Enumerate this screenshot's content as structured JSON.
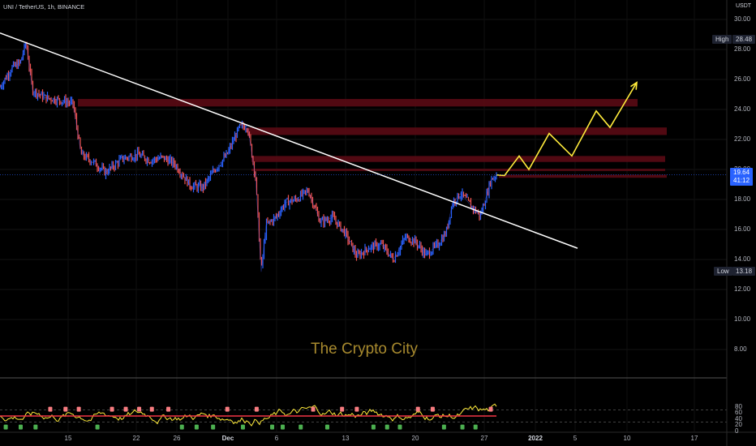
{
  "header": {
    "ticker": "UNI / TetherUS, 1h, BINANCE",
    "currency": "USDT"
  },
  "watermark": "The Crypto City",
  "badges": {
    "high_label": "High",
    "high_value": "28.48",
    "low_label": "Low",
    "low_value": "13.18",
    "price": "19.64",
    "countdown": "41:12"
  },
  "colors": {
    "background": "#000000",
    "up": "#2962ff",
    "down": "#ef5350",
    "trendline": "#ffffff",
    "projection": "#ffeb3b",
    "zone": "#5a0a14",
    "price_badge": "#2962ff",
    "osc_line": "#ffeb3b",
    "osc_signal": "#f23645"
  },
  "chart_data": {
    "type": "line",
    "title": "UNI / TetherUS, 1h, BINANCE",
    "ylabel": "USDT",
    "ylim": [
      7,
      31
    ],
    "y_ticks": [
      "30.00",
      "28.00",
      "26.00",
      "24.00",
      "22.00",
      "20.00",
      "18.00",
      "16.00",
      "14.00",
      "12.00",
      "10.00",
      "8.00"
    ],
    "x_ticks": [
      "15",
      "22",
      "26",
      "Dec",
      "6",
      "13",
      "20",
      "27",
      "2022",
      "5",
      "10",
      "17"
    ],
    "price_path": [
      [
        0,
        25.5
      ],
      [
        15,
        26.8
      ],
      [
        25,
        27.1
      ],
      [
        32,
        28.48
      ],
      [
        40,
        25.3
      ],
      [
        55,
        24.8
      ],
      [
        75,
        24.6
      ],
      [
        90,
        24.4
      ],
      [
        100,
        21.0
      ],
      [
        115,
        20.5
      ],
      [
        130,
        19.8
      ],
      [
        150,
        20.7
      ],
      [
        170,
        21.0
      ],
      [
        185,
        20.6
      ],
      [
        200,
        20.8
      ],
      [
        215,
        20.4
      ],
      [
        235,
        18.9
      ],
      [
        250,
        18.8
      ],
      [
        265,
        20.0
      ],
      [
        280,
        21.0
      ],
      [
        295,
        22.8
      ],
      [
        305,
        22.9
      ],
      [
        315,
        19.5
      ],
      [
        322,
        13.18
      ],
      [
        328,
        16.3
      ],
      [
        340,
        16.8
      ],
      [
        352,
        17.8
      ],
      [
        365,
        18.0
      ],
      [
        380,
        18.6
      ],
      [
        395,
        16.5
      ],
      [
        410,
        16.8
      ],
      [
        425,
        15.8
      ],
      [
        440,
        14.2
      ],
      [
        455,
        14.8
      ],
      [
        470,
        15.0
      ],
      [
        485,
        14.0
      ],
      [
        500,
        15.5
      ],
      [
        512,
        15.2
      ],
      [
        525,
        14.3
      ],
      [
        540,
        15.0
      ],
      [
        550,
        15.8
      ],
      [
        558,
        17.8
      ],
      [
        568,
        18.4
      ],
      [
        582,
        17.5
      ],
      [
        592,
        16.9
      ],
      [
        600,
        18.3
      ],
      [
        605,
        19.3
      ],
      [
        612,
        19.64
      ]
    ],
    "trendline": [
      [
        0,
        29.1
      ],
      [
        712,
        14.75
      ]
    ],
    "projection": [
      [
        612,
        19.64
      ],
      [
        622,
        19.6
      ],
      [
        640,
        20.9
      ],
      [
        652,
        20.0
      ],
      [
        677,
        22.4
      ],
      [
        705,
        20.9
      ],
      [
        735,
        23.9
      ],
      [
        752,
        22.8
      ],
      [
        785,
        25.8
      ]
    ],
    "resistance_zones": [
      [
        24.2,
        24.7
      ],
      [
        22.3,
        22.8
      ],
      [
        20.5,
        20.9
      ],
      [
        19.9,
        20.05
      ],
      [
        19.45,
        19.65
      ]
    ],
    "oscillator": {
      "ylim": [
        0,
        100
      ],
      "y_ticks": [
        "80",
        "60",
        "40",
        "20",
        "0"
      ],
      "overbought": 70,
      "oversold": 30,
      "signal_level": 50
    }
  }
}
